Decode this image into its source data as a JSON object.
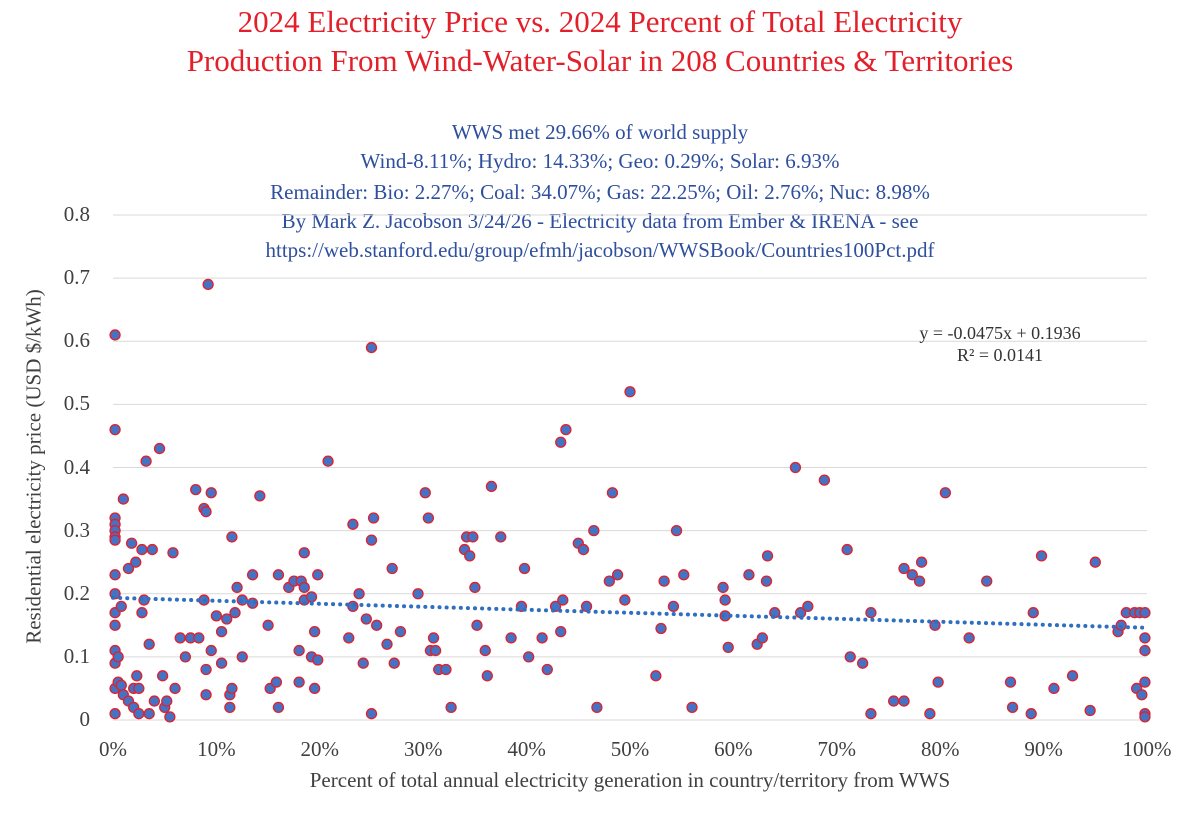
{
  "chart_data": {
    "type": "scatter",
    "title_line1": "2024 Electricity Price vs. 2024 Percent of Total Electricity",
    "title_line2": "Production From Wind-Water-Solar in 208 Countries & Territories",
    "annotations": [
      "WWS met 29.66% of world supply",
      "Wind-8.11%; Hydro: 14.33%; Geo: 0.29%; Solar: 6.93%",
      "Remainder: Bio: 2.27%; Coal: 34.07%; Gas: 22.25%; Oil: 2.76%; Nuc: 8.98%",
      "By Mark Z. Jacobson 3/24/26 - Electricity data from Ember & IRENA - see",
      "https://web.stanford.edu/group/efmh/jacobson/WWSBook/Countries100Pct.pdf"
    ],
    "xlabel": "Percent of total annual electricity generation in country/territory from WWS",
    "ylabel": "Residential electricity price (USD $/kWh)",
    "xlim": [
      0,
      100
    ],
    "ylim": [
      0,
      0.8
    ],
    "x_ticks": [
      "0%",
      "10%",
      "20%",
      "30%",
      "40%",
      "50%",
      "60%",
      "70%",
      "80%",
      "90%",
      "100%"
    ],
    "y_ticks": [
      "0",
      "0.1",
      "0.2",
      "0.3",
      "0.4",
      "0.5",
      "0.6",
      "0.7",
      "0.8"
    ],
    "trendline": {
      "slope": -0.0475,
      "intercept": 0.1936,
      "equation": "y = -0.0475x + 0.1936",
      "r_squared": "R² = 0.0141",
      "color": "#2e6fc0"
    },
    "marker_fill": "#4472c4",
    "marker_edge": "#e3202a",
    "points": [
      [
        0.2,
        0.61
      ],
      [
        0.2,
        0.46
      ],
      [
        0.2,
        0.32
      ],
      [
        0.2,
        0.31
      ],
      [
        0.2,
        0.3
      ],
      [
        0.2,
        0.29
      ],
      [
        0.2,
        0.285
      ],
      [
        0.2,
        0.23
      ],
      [
        0.2,
        0.2
      ],
      [
        0.2,
        0.17
      ],
      [
        0.2,
        0.15
      ],
      [
        0.2,
        0.11
      ],
      [
        0.2,
        0.09
      ],
      [
        0.2,
        0.05
      ],
      [
        0.2,
        0.01
      ],
      [
        0.5,
        0.06
      ],
      [
        0.5,
        0.1
      ],
      [
        0.8,
        0.055
      ],
      [
        0.8,
        0.18
      ],
      [
        1.0,
        0.35
      ],
      [
        1.0,
        0.04
      ],
      [
        1.5,
        0.24
      ],
      [
        1.5,
        0.03
      ],
      [
        1.8,
        0.28
      ],
      [
        2.0,
        0.02
      ],
      [
        2.0,
        0.05
      ],
      [
        2.2,
        0.25
      ],
      [
        2.3,
        0.07
      ],
      [
        2.5,
        0.05
      ],
      [
        2.5,
        0.01
      ],
      [
        2.8,
        0.27
      ],
      [
        2.8,
        0.17
      ],
      [
        3.0,
        0.19
      ],
      [
        3.2,
        0.41
      ],
      [
        3.5,
        0.12
      ],
      [
        3.5,
        0.01
      ],
      [
        3.8,
        0.27
      ],
      [
        4.0,
        0.03
      ],
      [
        4.5,
        0.43
      ],
      [
        4.8,
        0.07
      ],
      [
        5.0,
        0.02
      ],
      [
        5.2,
        0.03
      ],
      [
        5.5,
        0.005
      ],
      [
        5.8,
        0.265
      ],
      [
        6.0,
        0.05
      ],
      [
        6.5,
        0.13
      ],
      [
        7.0,
        0.1
      ],
      [
        7.5,
        0.13
      ],
      [
        8.0,
        0.365
      ],
      [
        8.3,
        0.13
      ],
      [
        8.8,
        0.19
      ],
      [
        8.8,
        0.335
      ],
      [
        9.0,
        0.33
      ],
      [
        9.0,
        0.08
      ],
      [
        9.0,
        0.04
      ],
      [
        9.2,
        0.69
      ],
      [
        9.5,
        0.36
      ],
      [
        9.5,
        0.11
      ],
      [
        10.0,
        0.165
      ],
      [
        10.5,
        0.14
      ],
      [
        10.5,
        0.09
      ],
      [
        11.0,
        0.16
      ],
      [
        11.3,
        0.02
      ],
      [
        11.3,
        0.04
      ],
      [
        11.5,
        0.05
      ],
      [
        11.5,
        0.29
      ],
      [
        11.8,
        0.17
      ],
      [
        12.0,
        0.21
      ],
      [
        12.5,
        0.19
      ],
      [
        12.5,
        0.1
      ],
      [
        13.5,
        0.185
      ],
      [
        13.5,
        0.23
      ],
      [
        14.2,
        0.355
      ],
      [
        15.0,
        0.15
      ],
      [
        15.2,
        0.05
      ],
      [
        15.8,
        0.06
      ],
      [
        16.0,
        0.23
      ],
      [
        16.0,
        0.02
      ],
      [
        17.0,
        0.21
      ],
      [
        17.5,
        0.22
      ],
      [
        18.0,
        0.11
      ],
      [
        18.0,
        0.06
      ],
      [
        18.2,
        0.22
      ],
      [
        18.5,
        0.265
      ],
      [
        18.5,
        0.21
      ],
      [
        18.5,
        0.19
      ],
      [
        19.2,
        0.195
      ],
      [
        19.2,
        0.1
      ],
      [
        19.5,
        0.05
      ],
      [
        19.5,
        0.14
      ],
      [
        19.8,
        0.23
      ],
      [
        19.8,
        0.095
      ],
      [
        20.8,
        0.41
      ],
      [
        22.8,
        0.13
      ],
      [
        23.2,
        0.31
      ],
      [
        23.2,
        0.18
      ],
      [
        23.8,
        0.2
      ],
      [
        24.2,
        0.09
      ],
      [
        24.5,
        0.16
      ],
      [
        25.0,
        0.59
      ],
      [
        25.0,
        0.01
      ],
      [
        25.0,
        0.285
      ],
      [
        25.2,
        0.32
      ],
      [
        25.5,
        0.15
      ],
      [
        26.5,
        0.12
      ],
      [
        27.0,
        0.24
      ],
      [
        27.2,
        0.09
      ],
      [
        27.8,
        0.14
      ],
      [
        29.5,
        0.2
      ],
      [
        30.2,
        0.36
      ],
      [
        30.5,
        0.32
      ],
      [
        30.7,
        0.11
      ],
      [
        31.0,
        0.13
      ],
      [
        31.2,
        0.11
      ],
      [
        31.5,
        0.08
      ],
      [
        32.2,
        0.08
      ],
      [
        32.7,
        0.02
      ],
      [
        34.0,
        0.27
      ],
      [
        34.2,
        0.29
      ],
      [
        34.5,
        0.26
      ],
      [
        34.8,
        0.29
      ],
      [
        35.0,
        0.21
      ],
      [
        35.2,
        0.15
      ],
      [
        36.0,
        0.11
      ],
      [
        36.2,
        0.07
      ],
      [
        36.6,
        0.37
      ],
      [
        37.5,
        0.29
      ],
      [
        38.5,
        0.13
      ],
      [
        39.5,
        0.18
      ],
      [
        39.8,
        0.24
      ],
      [
        40.2,
        0.1
      ],
      [
        41.5,
        0.13
      ],
      [
        42.0,
        0.08
      ],
      [
        42.8,
        0.18
      ],
      [
        43.3,
        0.44
      ],
      [
        43.3,
        0.14
      ],
      [
        43.5,
        0.19
      ],
      [
        43.8,
        0.46
      ],
      [
        45.0,
        0.28
      ],
      [
        45.5,
        0.27
      ],
      [
        45.8,
        0.18
      ],
      [
        46.5,
        0.3
      ],
      [
        46.8,
        0.02
      ],
      [
        48.0,
        0.22
      ],
      [
        48.3,
        0.36
      ],
      [
        48.8,
        0.23
      ],
      [
        49.5,
        0.19
      ],
      [
        50.0,
        0.52
      ],
      [
        52.5,
        0.07
      ],
      [
        53.0,
        0.145
      ],
      [
        53.3,
        0.22
      ],
      [
        54.2,
        0.18
      ],
      [
        54.5,
        0.3
      ],
      [
        55.2,
        0.23
      ],
      [
        56.0,
        0.02
      ],
      [
        59.0,
        0.21
      ],
      [
        59.2,
        0.19
      ],
      [
        59.2,
        0.165
      ],
      [
        59.5,
        0.115
      ],
      [
        61.5,
        0.23
      ],
      [
        62.3,
        0.12
      ],
      [
        62.8,
        0.13
      ],
      [
        63.2,
        0.22
      ],
      [
        63.3,
        0.26
      ],
      [
        64.0,
        0.17
      ],
      [
        66.0,
        0.4
      ],
      [
        66.5,
        0.17
      ],
      [
        67.2,
        0.18
      ],
      [
        68.8,
        0.38
      ],
      [
        71.0,
        0.27
      ],
      [
        71.3,
        0.1
      ],
      [
        72.5,
        0.09
      ],
      [
        73.3,
        0.01
      ],
      [
        73.3,
        0.17
      ],
      [
        75.5,
        0.03
      ],
      [
        76.5,
        0.24
      ],
      [
        76.5,
        0.03
      ],
      [
        77.3,
        0.23
      ],
      [
        78.0,
        0.22
      ],
      [
        78.2,
        0.25
      ],
      [
        79.0,
        0.01
      ],
      [
        79.5,
        0.15
      ],
      [
        79.8,
        0.06
      ],
      [
        80.5,
        0.36
      ],
      [
        82.8,
        0.13
      ],
      [
        84.5,
        0.22
      ],
      [
        86.8,
        0.06
      ],
      [
        87.0,
        0.02
      ],
      [
        88.8,
        0.01
      ],
      [
        89.0,
        0.17
      ],
      [
        89.8,
        0.26
      ],
      [
        91.0,
        0.05
      ],
      [
        92.8,
        0.07
      ],
      [
        94.5,
        0.015
      ],
      [
        95.0,
        0.25
      ],
      [
        97.2,
        0.14
      ],
      [
        97.5,
        0.15
      ],
      [
        98.0,
        0.17
      ],
      [
        98.8,
        0.17
      ],
      [
        99.0,
        0.05
      ],
      [
        99.3,
        0.17
      ],
      [
        99.5,
        0.04
      ],
      [
        99.8,
        0.17
      ],
      [
        99.8,
        0.13
      ],
      [
        99.8,
        0.11
      ],
      [
        99.8,
        0.06
      ],
      [
        99.8,
        0.01
      ],
      [
        99.8,
        0.005
      ]
    ]
  }
}
